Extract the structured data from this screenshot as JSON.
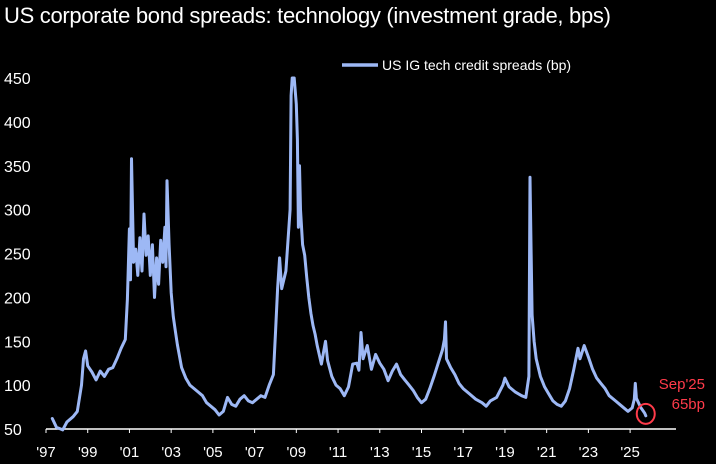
{
  "title": "US corporate bond spreads: technology (investment grade, bps)",
  "chart_data": {
    "type": "line",
    "title": "US corporate bond spreads: technology (investment grade, bps)",
    "xlabel": "",
    "ylabel": "",
    "x_tick_labels": [
      "'97",
      "'99",
      "'01",
      "'03",
      "'05",
      "'07",
      "'09",
      "'11",
      "'13",
      "'15",
      "'17",
      "'19",
      "'21",
      "'23",
      "'25"
    ],
    "y_ticks": [
      50,
      100,
      150,
      200,
      250,
      300,
      350,
      400,
      450
    ],
    "ylim": [
      50,
      450
    ],
    "xlim": [
      1997.0,
      2027.2
    ],
    "grid": false,
    "legend_position": "top-right",
    "series": [
      {
        "name": "US IG tech credit spreads (bp)",
        "color": "#9db8f5",
        "points": [
          [
            1997.3,
            62
          ],
          [
            1997.5,
            52
          ],
          [
            1997.8,
            49
          ],
          [
            1998.0,
            58
          ],
          [
            1998.3,
            64
          ],
          [
            1998.5,
            70
          ],
          [
            1998.7,
            100
          ],
          [
            1998.8,
            130
          ],
          [
            1998.9,
            139
          ],
          [
            1999.0,
            122
          ],
          [
            1999.2,
            115
          ],
          [
            1999.4,
            106
          ],
          [
            1999.6,
            116
          ],
          [
            1999.8,
            110
          ],
          [
            2000.0,
            118
          ],
          [
            2000.2,
            120
          ],
          [
            2000.4,
            130
          ],
          [
            2000.6,
            142
          ],
          [
            2000.8,
            152
          ],
          [
            2000.9,
            198
          ],
          [
            2001.0,
            278
          ],
          [
            2001.05,
            220
          ],
          [
            2001.1,
            358
          ],
          [
            2001.2,
            240
          ],
          [
            2001.3,
            255
          ],
          [
            2001.4,
            225
          ],
          [
            2001.5,
            268
          ],
          [
            2001.6,
            230
          ],
          [
            2001.7,
            295
          ],
          [
            2001.8,
            248
          ],
          [
            2001.9,
            270
          ],
          [
            2002.0,
            225
          ],
          [
            2002.1,
            260
          ],
          [
            2002.2,
            200
          ],
          [
            2002.3,
            245
          ],
          [
            2002.4,
            215
          ],
          [
            2002.5,
            265
          ],
          [
            2002.6,
            240
          ],
          [
            2002.7,
            280
          ],
          [
            2002.75,
            235
          ],
          [
            2002.8,
            333
          ],
          [
            2002.9,
            260
          ],
          [
            2003.0,
            205
          ],
          [
            2003.1,
            178
          ],
          [
            2003.2,
            162
          ],
          [
            2003.3,
            146
          ],
          [
            2003.5,
            120
          ],
          [
            2003.7,
            108
          ],
          [
            2003.9,
            100
          ],
          [
            2004.1,
            96
          ],
          [
            2004.3,
            92
          ],
          [
            2004.5,
            88
          ],
          [
            2004.7,
            80
          ],
          [
            2004.9,
            76
          ],
          [
            2005.1,
            72
          ],
          [
            2005.3,
            66
          ],
          [
            2005.5,
            70
          ],
          [
            2005.7,
            86
          ],
          [
            2005.9,
            78
          ],
          [
            2006.1,
            76
          ],
          [
            2006.3,
            84
          ],
          [
            2006.5,
            88
          ],
          [
            2006.7,
            82
          ],
          [
            2006.9,
            80
          ],
          [
            2007.1,
            84
          ],
          [
            2007.3,
            88
          ],
          [
            2007.5,
            86
          ],
          [
            2007.7,
            100
          ],
          [
            2007.9,
            112
          ],
          [
            2008.0,
            160
          ],
          [
            2008.1,
            210
          ],
          [
            2008.2,
            245
          ],
          [
            2008.3,
            210
          ],
          [
            2008.5,
            230
          ],
          [
            2008.6,
            265
          ],
          [
            2008.7,
            300
          ],
          [
            2008.75,
            430
          ],
          [
            2008.8,
            450
          ],
          [
            2008.9,
            450
          ],
          [
            2009.0,
            420
          ],
          [
            2009.05,
            380
          ],
          [
            2009.1,
            280
          ],
          [
            2009.15,
            350
          ],
          [
            2009.2,
            300
          ],
          [
            2009.3,
            260
          ],
          [
            2009.4,
            248
          ],
          [
            2009.5,
            222
          ],
          [
            2009.6,
            200
          ],
          [
            2009.7,
            182
          ],
          [
            2009.8,
            168
          ],
          [
            2009.9,
            158
          ],
          [
            2010.0,
            145
          ],
          [
            2010.2,
            124
          ],
          [
            2010.4,
            150
          ],
          [
            2010.5,
            128
          ],
          [
            2010.7,
            110
          ],
          [
            2010.9,
            100
          ],
          [
            2011.1,
            96
          ],
          [
            2011.3,
            88
          ],
          [
            2011.5,
            98
          ],
          [
            2011.7,
            124
          ],
          [
            2011.9,
            125
          ],
          [
            2012.0,
            117
          ],
          [
            2012.1,
            160
          ],
          [
            2012.2,
            130
          ],
          [
            2012.4,
            145
          ],
          [
            2012.6,
            118
          ],
          [
            2012.8,
            135
          ],
          [
            2013.0,
            125
          ],
          [
            2013.2,
            118
          ],
          [
            2013.4,
            105
          ],
          [
            2013.6,
            116
          ],
          [
            2013.8,
            124
          ],
          [
            2014.0,
            112
          ],
          [
            2014.2,
            106
          ],
          [
            2014.4,
            100
          ],
          [
            2014.6,
            94
          ],
          [
            2014.8,
            86
          ],
          [
            2015.0,
            80
          ],
          [
            2015.2,
            84
          ],
          [
            2015.4,
            96
          ],
          [
            2015.6,
            110
          ],
          [
            2015.8,
            125
          ],
          [
            2016.0,
            140
          ],
          [
            2016.1,
            152
          ],
          [
            2016.15,
            172
          ],
          [
            2016.2,
            130
          ],
          [
            2016.4,
            120
          ],
          [
            2016.6,
            112
          ],
          [
            2016.8,
            102
          ],
          [
            2017.0,
            96
          ],
          [
            2017.3,
            90
          ],
          [
            2017.6,
            84
          ],
          [
            2017.9,
            80
          ],
          [
            2018.1,
            76
          ],
          [
            2018.3,
            82
          ],
          [
            2018.6,
            86
          ],
          [
            2018.9,
            100
          ],
          [
            2019.0,
            108
          ],
          [
            2019.2,
            98
          ],
          [
            2019.5,
            92
          ],
          [
            2019.8,
            88
          ],
          [
            2020.0,
            86
          ],
          [
            2020.15,
            110
          ],
          [
            2020.2,
            337
          ],
          [
            2020.25,
            260
          ],
          [
            2020.3,
            180
          ],
          [
            2020.4,
            150
          ],
          [
            2020.5,
            130
          ],
          [
            2020.7,
            110
          ],
          [
            2020.9,
            98
          ],
          [
            2021.1,
            90
          ],
          [
            2021.3,
            82
          ],
          [
            2021.5,
            78
          ],
          [
            2021.7,
            76
          ],
          [
            2021.9,
            82
          ],
          [
            2022.1,
            96
          ],
          [
            2022.3,
            118
          ],
          [
            2022.5,
            142
          ],
          [
            2022.6,
            130
          ],
          [
            2022.8,
            145
          ],
          [
            2023.0,
            132
          ],
          [
            2023.2,
            118
          ],
          [
            2023.4,
            108
          ],
          [
            2023.6,
            102
          ],
          [
            2023.8,
            96
          ],
          [
            2024.0,
            88
          ],
          [
            2024.3,
            82
          ],
          [
            2024.6,
            76
          ],
          [
            2024.9,
            70
          ],
          [
            2025.1,
            74
          ],
          [
            2025.2,
            84
          ],
          [
            2025.25,
            102
          ],
          [
            2025.3,
            85
          ],
          [
            2025.5,
            75
          ],
          [
            2025.7,
            68
          ],
          [
            2025.75,
            65
          ]
        ]
      }
    ],
    "annotation": {
      "lines": [
        "Sep'25",
        "65bp"
      ],
      "x": 2025.75,
      "y": 65,
      "color": "#ff3b4a"
    }
  }
}
